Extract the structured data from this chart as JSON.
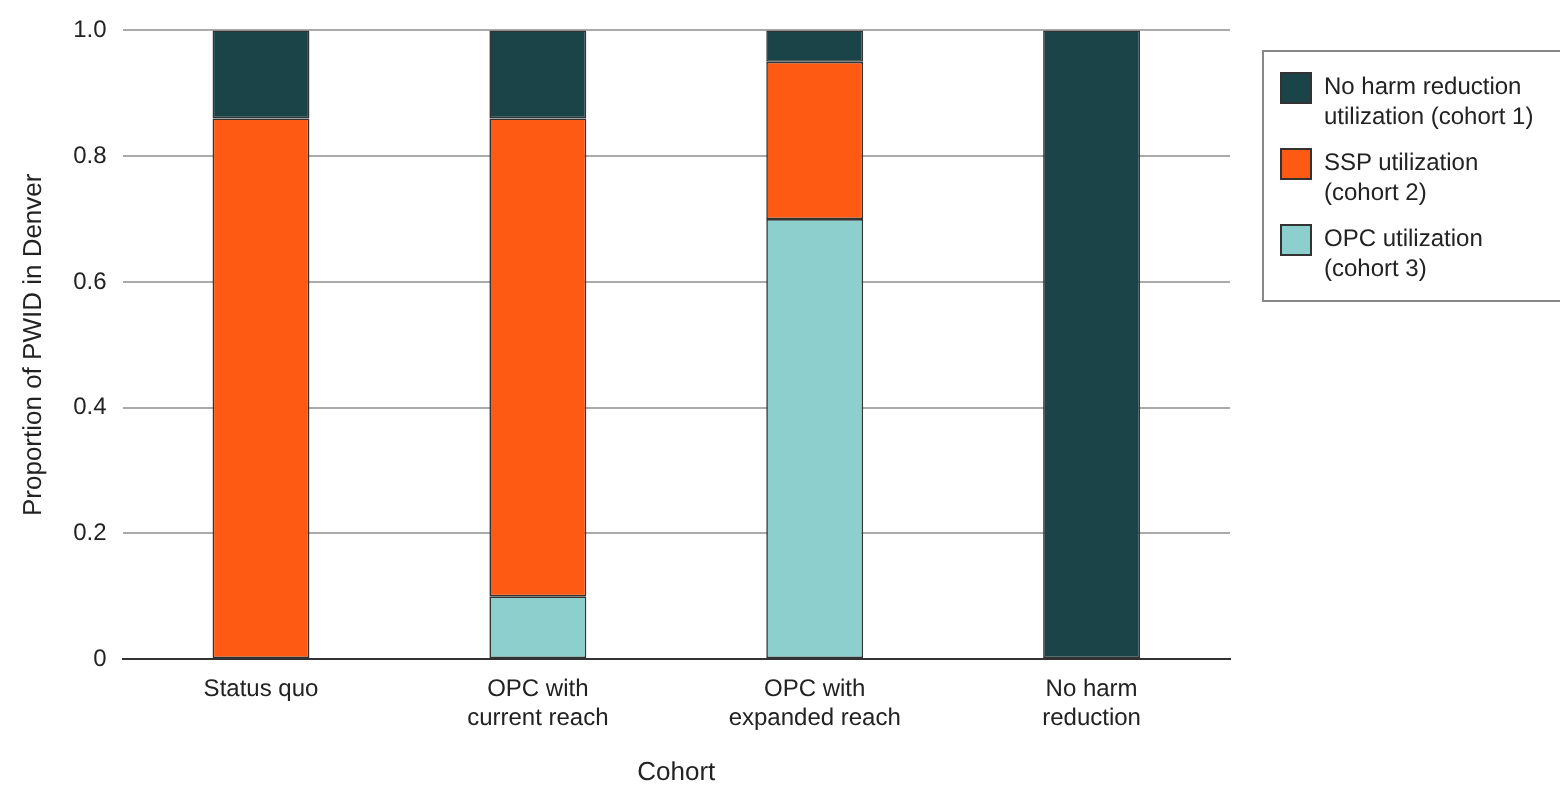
{
  "chart_data": {
    "type": "bar",
    "stacked": true,
    "xlabel": "Cohort",
    "ylabel": "Proportion of PWID in Denver",
    "categories": [
      "Status quo",
      "OPC with current reach",
      "OPC with expanded reach",
      "No harm reduction"
    ],
    "series": [
      {
        "name": "OPC utilization (cohort 3)",
        "color": "#8ccfcc",
        "values": [
          0,
          0.1,
          0.7,
          0
        ]
      },
      {
        "name": "SSP utilization (cohort 2)",
        "color": "#ff5a14",
        "values": [
          0.86,
          0.76,
          0.25,
          0
        ]
      },
      {
        "name": "No harm reduction utilization (cohort 1)",
        "color": "#1a4447",
        "values": [
          0.14,
          0.14,
          0.05,
          1
        ]
      }
    ],
    "ylim": [
      0,
      1
    ],
    "yticks": [
      {
        "value": 0,
        "label": "0"
      },
      0.2,
      0.4,
      0.6,
      0.8,
      {
        "value": 1,
        "label": "1.0"
      }
    ],
    "grid": "y",
    "legend": "right"
  }
}
